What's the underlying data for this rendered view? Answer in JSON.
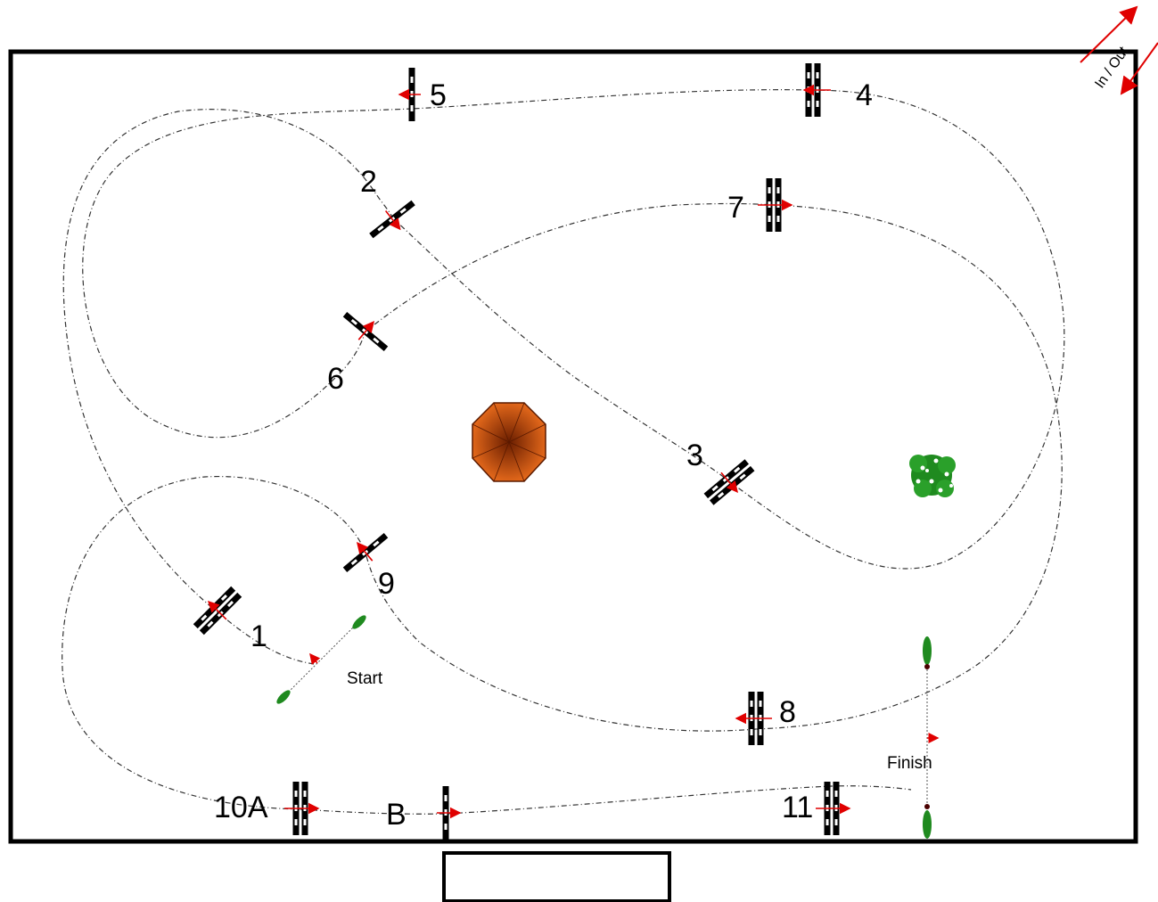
{
  "arena": {
    "in_out_label": "In / Out",
    "start_label": "Start",
    "finish_label": "Finish",
    "judge_box_text": ""
  },
  "obstacles": [
    {
      "id": "1",
      "label": "1",
      "kind": "oxer",
      "direction": "left"
    },
    {
      "id": "2",
      "label": "2",
      "kind": "vertical",
      "direction": "right-down"
    },
    {
      "id": "3",
      "label": "3",
      "kind": "oxer",
      "direction": "right-down"
    },
    {
      "id": "4",
      "label": "4",
      "kind": "oxer",
      "direction": "left"
    },
    {
      "id": "5",
      "label": "5",
      "kind": "vertical",
      "direction": "left"
    },
    {
      "id": "6",
      "label": "6",
      "kind": "vertical",
      "direction": "right-up"
    },
    {
      "id": "7",
      "label": "7",
      "kind": "oxer",
      "direction": "right"
    },
    {
      "id": "8",
      "label": "8",
      "kind": "oxer",
      "direction": "left"
    },
    {
      "id": "9",
      "label": "9",
      "kind": "vertical",
      "direction": "left-up"
    },
    {
      "id": "10A",
      "label": "10A",
      "kind": "oxer",
      "direction": "right"
    },
    {
      "id": "10B",
      "label": "B",
      "kind": "vertical",
      "direction": "right"
    },
    {
      "id": "11",
      "label": "11",
      "kind": "oxer",
      "direction": "right"
    }
  ],
  "decorations": [
    {
      "name": "octagon-gazebo",
      "color": "#c84a0a"
    },
    {
      "name": "flower-bush",
      "color": "#1f8a1f"
    }
  ],
  "colors": {
    "arrow": "#e00000",
    "flag": "#1f8a1f",
    "border": "#000000"
  }
}
